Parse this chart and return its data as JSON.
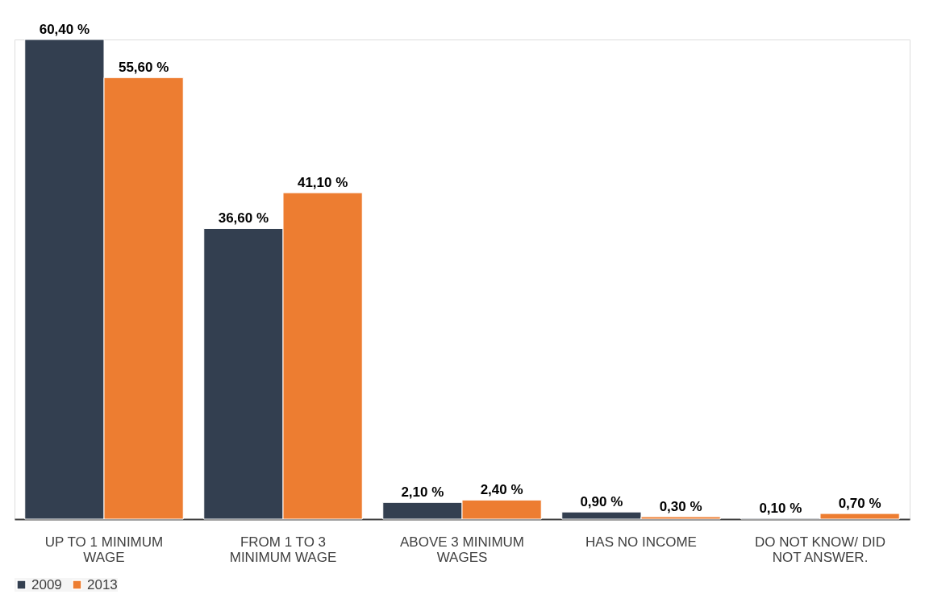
{
  "chart_data": {
    "type": "bar",
    "categories": [
      "UP TO 1 MINIMUM WAGE",
      "FROM 1 TO 3 MINIMUM WAGE",
      "ABOVE 3 MINIMUM WAGES",
      "HAS NO INCOME",
      "DO NOT KNOW/ DID NOT ANSWER."
    ],
    "series": [
      {
        "name": "2009",
        "color": "#333f50",
        "values": [
          60.4,
          36.6,
          2.1,
          0.9,
          0.1
        ],
        "value_labels": [
          "60,40 %",
          "36,60 %",
          "2,10 %",
          "0,90 %",
          "0,10 %"
        ]
      },
      {
        "name": "2013",
        "color": "#ed7d31",
        "values": [
          55.6,
          41.1,
          2.4,
          0.3,
          0.7
        ],
        "value_labels": [
          "55,60 %",
          "41,10 %",
          "2,40 %",
          "0,30 %",
          "0,70 %"
        ]
      }
    ],
    "legend": "bottom",
    "grid": false
  }
}
